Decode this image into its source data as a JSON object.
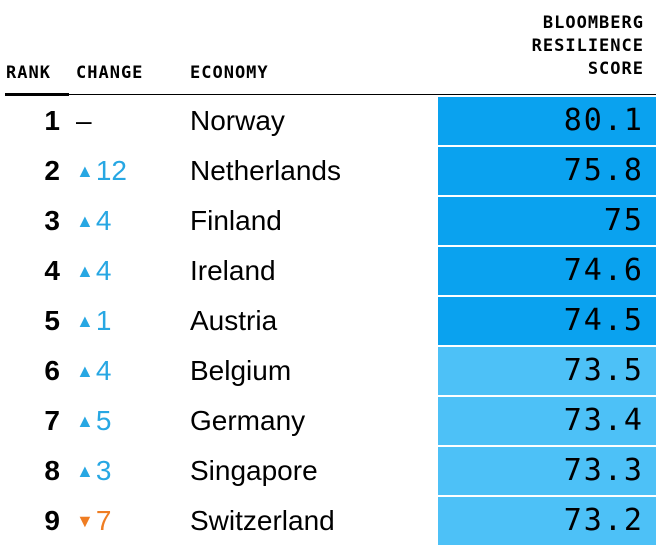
{
  "header": {
    "rank": "RANK",
    "change": "CHANGE",
    "economy": "ECONOMY",
    "score": "BLOOMBERG\nRESILIENCE\nSCORE"
  },
  "colors": {
    "top_tier": "#0aa2ef",
    "lower_tier": "#4dc1f7",
    "up_arrow": "#27a7e3",
    "down_arrow": "#ef7d22",
    "neutral": "#000000"
  },
  "chart_data": {
    "type": "table",
    "columns": [
      "RANK",
      "CHANGE",
      "ECONOMY",
      "BLOOMBERG RESILIENCE SCORE"
    ],
    "rows": [
      {
        "rank": "1",
        "change": "–",
        "direction": "none",
        "economy": "Norway",
        "score": "80.1"
      },
      {
        "rank": "2",
        "change": "12",
        "direction": "up",
        "economy": "Netherlands",
        "score": "75.8"
      },
      {
        "rank": "3",
        "change": "4",
        "direction": "up",
        "economy": "Finland",
        "score": "75"
      },
      {
        "rank": "4",
        "change": "4",
        "direction": "up",
        "economy": "Ireland",
        "score": "74.6"
      },
      {
        "rank": "5",
        "change": "1",
        "direction": "up",
        "economy": "Austria",
        "score": "74.5"
      },
      {
        "rank": "6",
        "change": "4",
        "direction": "up",
        "economy": "Belgium",
        "score": "73.5"
      },
      {
        "rank": "7",
        "change": "5",
        "direction": "up",
        "economy": "Germany",
        "score": "73.4"
      },
      {
        "rank": "8",
        "change": "3",
        "direction": "up",
        "economy": "Singapore",
        "score": "73.3"
      },
      {
        "rank": "9",
        "change": "7",
        "direction": "down",
        "economy": "Switzerland",
        "score": "73.2"
      }
    ]
  }
}
